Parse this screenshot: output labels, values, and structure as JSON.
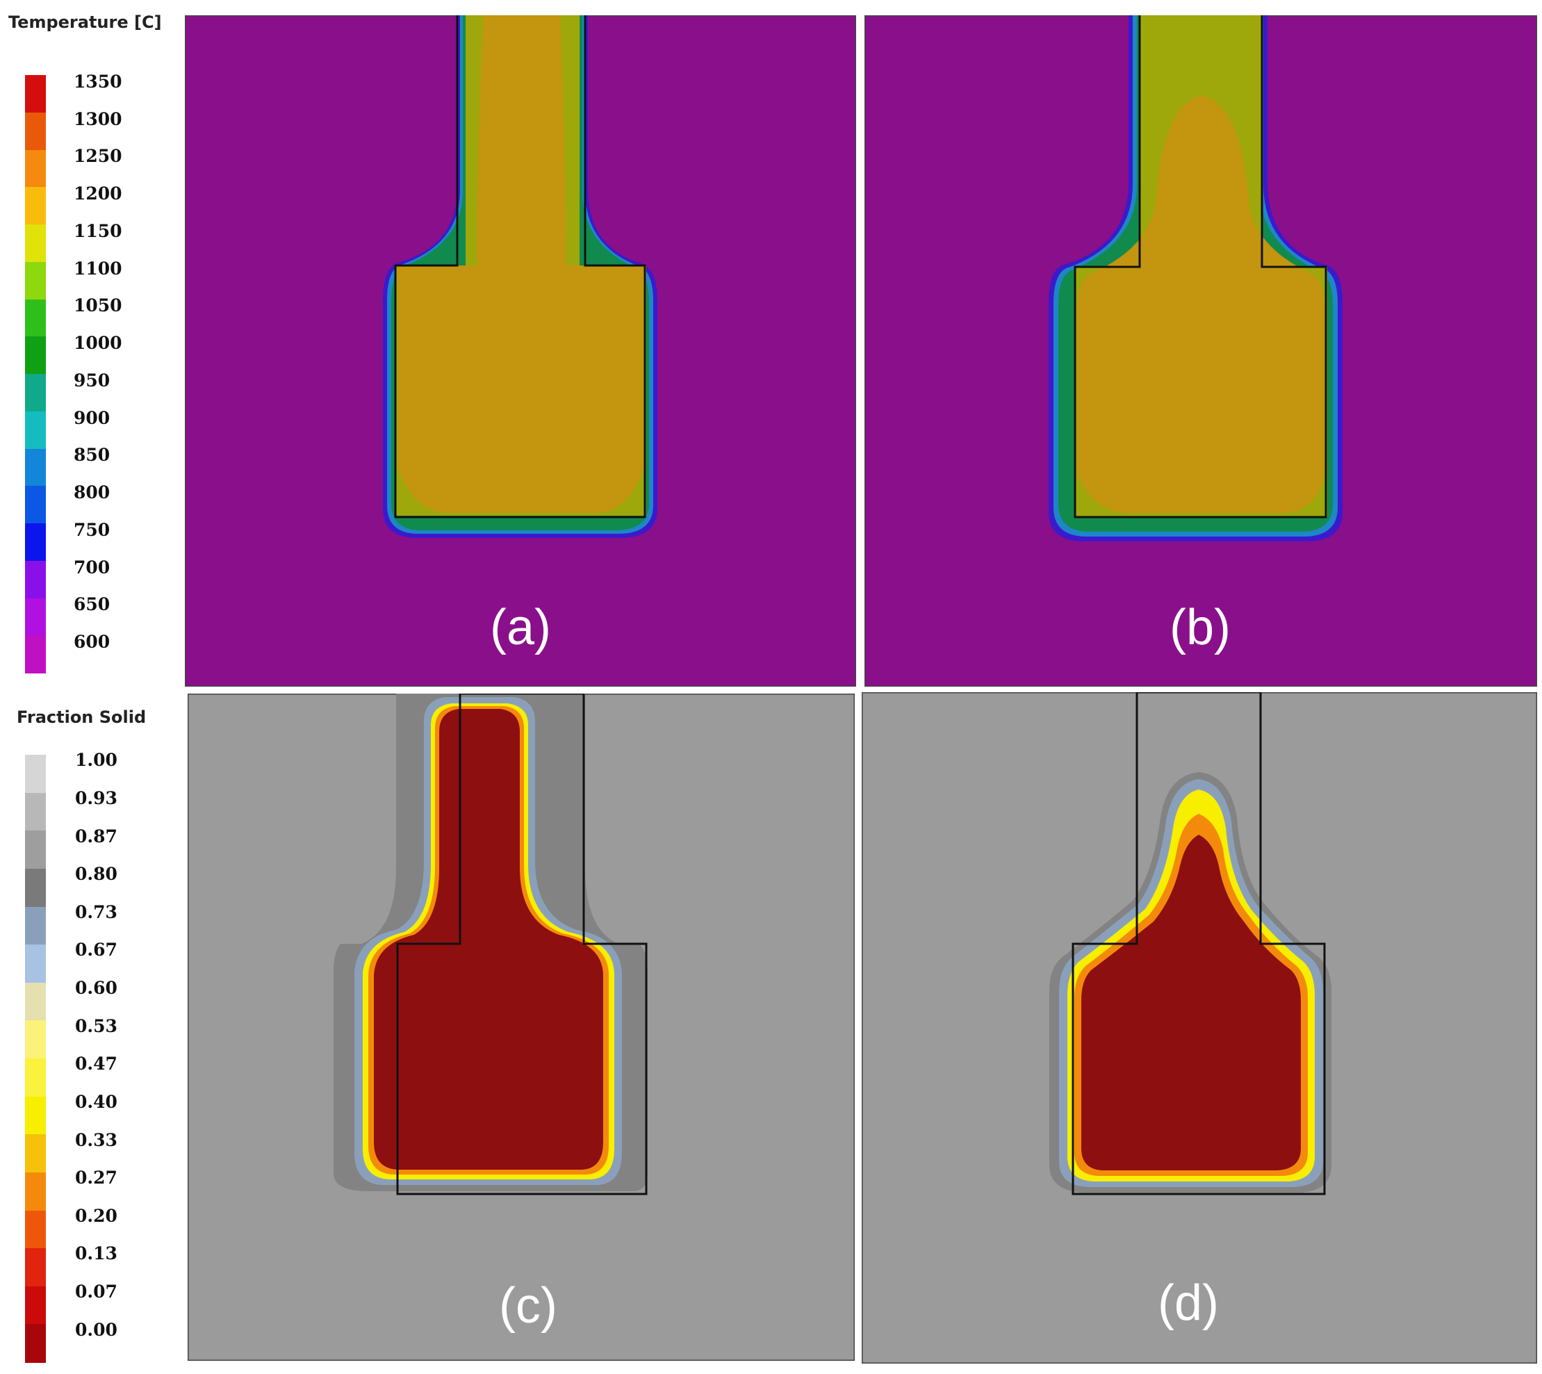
{
  "temperature_legend": {
    "title": "Temperature  [C]",
    "labels": [
      "1350",
      "1300",
      "1250",
      "1200",
      "1150",
      "1100",
      "1050",
      "1000",
      "950",
      "900",
      "850",
      "800",
      "750",
      "700",
      "650",
      "600"
    ],
    "colors": [
      "#d40e0e",
      "#e85a0a",
      "#f48a10",
      "#f9bb0c",
      "#e0e20a",
      "#8ed80e",
      "#2fbf1a",
      "#0fa014",
      "#10a98a",
      "#14bcbf",
      "#1286d8",
      "#0c58e4",
      "#0a16ec",
      "#8a10ea",
      "#b010e0",
      "#c010c4"
    ]
  },
  "fraction_legend": {
    "title": "Fraction  Solid",
    "labels": [
      "1.00",
      "0.93",
      "0.87",
      "0.80",
      "0.73",
      "0.67",
      "0.60",
      "0.53",
      "0.47",
      "0.40",
      "0.33",
      "0.27",
      "0.20",
      "0.13",
      "0.07",
      "0.00"
    ],
    "colors": [
      "#d6d6d6",
      "#b8b8b8",
      "#9e9e9e",
      "#7a7a7a",
      "#8aa0ba",
      "#a8c2e4",
      "#e4e0b0",
      "#fbf27a",
      "#faf23c",
      "#f7ee00",
      "#f6c10a",
      "#f48a0c",
      "#ee560c",
      "#e0240e",
      "#cc0a0a",
      "#a8060a"
    ]
  },
  "panels": [
    {
      "label": "(a)",
      "background": "#8a0f8a",
      "fill": "#c4950e"
    },
    {
      "label": "(b)",
      "background": "#8a0f8a",
      "fill": "#c4950e"
    },
    {
      "label": "(c)",
      "background": "#9b9b9b",
      "fill": "#8e0f10"
    },
    {
      "label": "(d)",
      "background": "#9b9b9b",
      "fill": "#8e0f10"
    }
  ]
}
